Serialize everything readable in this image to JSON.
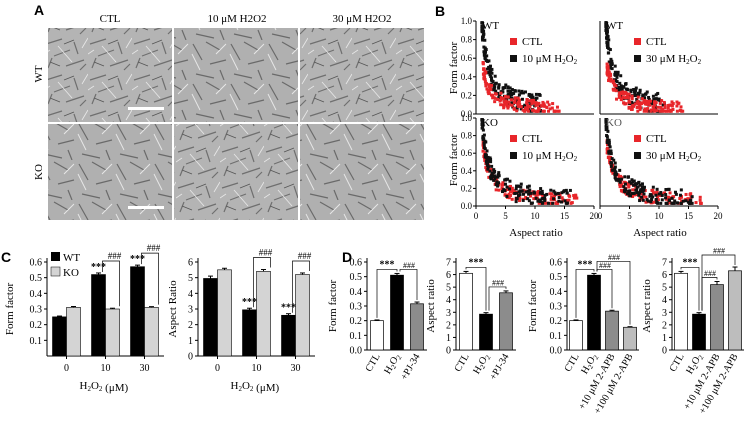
{
  "panels": {
    "A": {
      "letter": "A",
      "columns": [
        "CTL",
        "10 μM H2O2",
        "30 μM H2O2"
      ],
      "rows": [
        "WT",
        "KO"
      ]
    },
    "B": {
      "letter": "B",
      "ylabel": "Form factor",
      "xlabel": "Aspect ratio",
      "yticks": [
        "0.0",
        "0.2",
        "0.4",
        "0.6",
        "0.8",
        "1.0"
      ],
      "xticks": [
        "0",
        "5",
        "10",
        "15",
        "20"
      ],
      "subplots": [
        {
          "genotype": "WT",
          "legend": [
            "CTL",
            "10 μM H2O2"
          ]
        },
        {
          "genotype": "WT",
          "legend": [
            "CTL",
            "30 μM H2O2"
          ]
        },
        {
          "genotype": "KO",
          "legend": [
            "CTL",
            "10 μM H2O2"
          ]
        },
        {
          "genotype": "KO",
          "legend": [
            "CTL",
            "30 μM H2O2"
          ]
        }
      ]
    },
    "C": {
      "letter": "C"
    },
    "D": {
      "letter": "D"
    }
  },
  "colors": {
    "ctl": "#e8262a",
    "treated": "#111111",
    "wt": "#000000",
    "ko": "#d4d4d4",
    "grey": "#8c8c8c",
    "lightgrey": "#bdbdbd"
  },
  "chart_data": [
    {
      "type": "bar",
      "id": "C1",
      "categories": [
        "0",
        "10",
        "30"
      ],
      "xlabel": "H2O2 (μM)",
      "ylabel": "Form factor",
      "ylim": [
        0,
        0.6
      ],
      "yticks": [
        "0.1",
        "0.2",
        "0.3",
        "0.4",
        "0.5",
        "0.6"
      ],
      "series": [
        {
          "name": "WT",
          "values": [
            0.25,
            0.52,
            0.57
          ],
          "errors": [
            0.005,
            0.01,
            0.01
          ]
        },
        {
          "name": "KO",
          "values": [
            0.31,
            0.3,
            0.31
          ],
          "errors": [
            0.006,
            0.005,
            0.005
          ]
        }
      ],
      "annotations": [
        "***",
        "###",
        "***",
        "###"
      ]
    },
    {
      "type": "bar",
      "id": "C2",
      "categories": [
        "0",
        "10",
        "30"
      ],
      "xlabel": "H2O2 (μM)",
      "ylabel": "Aspect Ratio",
      "ylim": [
        0,
        6
      ],
      "yticks": [
        "0",
        "1",
        "2",
        "3",
        "4",
        "5",
        "6"
      ],
      "series": [
        {
          "name": "WT",
          "values": [
            4.95,
            2.95,
            2.6
          ],
          "errors": [
            0.15,
            0.1,
            0.1
          ]
        },
        {
          "name": "KO",
          "values": [
            5.5,
            5.4,
            5.2
          ],
          "errors": [
            0.1,
            0.12,
            0.1
          ]
        }
      ],
      "annotations": [
        "***",
        "###",
        "***",
        "###"
      ]
    },
    {
      "type": "bar",
      "id": "D1",
      "categories": [
        "CTL",
        "H2O2",
        "+PJ-34"
      ],
      "ylabel": "Form factor",
      "ylim": [
        0,
        0.6
      ],
      "yticks": [
        "0.0",
        "0.1",
        "0.2",
        "0.3",
        "0.4",
        "0.5",
        "0.6"
      ],
      "values": [
        0.2,
        0.51,
        0.315
      ],
      "errors": [
        0.005,
        0.012,
        0.012
      ],
      "annotations": [
        "***",
        "###"
      ]
    },
    {
      "type": "bar",
      "id": "D2",
      "categories": [
        "CTL",
        "H2O2",
        "+PJ-34"
      ],
      "ylabel": "Aspect ratio",
      "ylim": [
        0,
        7
      ],
      "yticks": [
        "0",
        "1",
        "2",
        "3",
        "4",
        "5",
        "6",
        "7"
      ],
      "values": [
        6.1,
        2.85,
        4.55
      ],
      "errors": [
        0.15,
        0.12,
        0.15
      ],
      "annotations": [
        "***",
        "###"
      ]
    },
    {
      "type": "bar",
      "id": "D3",
      "categories": [
        "CTL",
        "H2O2",
        "+10 μM 2-APB",
        "+100 μM 2-APB"
      ],
      "ylabel": "Form factor",
      "ylim": [
        0,
        0.6
      ],
      "yticks": [
        "0.0",
        "0.1",
        "0.2",
        "0.3",
        "0.4",
        "0.5",
        "0.6"
      ],
      "values": [
        0.2,
        0.51,
        0.265,
        0.155
      ],
      "errors": [
        0.005,
        0.012,
        0.006,
        0.004
      ],
      "annotations": [
        "***",
        "###",
        "###"
      ]
    },
    {
      "type": "bar",
      "id": "D4",
      "categories": [
        "CTL",
        "H2O2",
        "+10 μM 2-APB",
        "+100 μM 2-APB"
      ],
      "ylabel": "Aspect ratio",
      "ylim": [
        0,
        7
      ],
      "yticks": [
        "0",
        "1",
        "2",
        "3",
        "4",
        "5",
        "6",
        "7"
      ],
      "values": [
        6.1,
        2.85,
        5.2,
        6.3
      ],
      "errors": [
        0.15,
        0.12,
        0.25,
        0.3
      ],
      "annotations": [
        "***",
        "###",
        "###"
      ]
    }
  ]
}
